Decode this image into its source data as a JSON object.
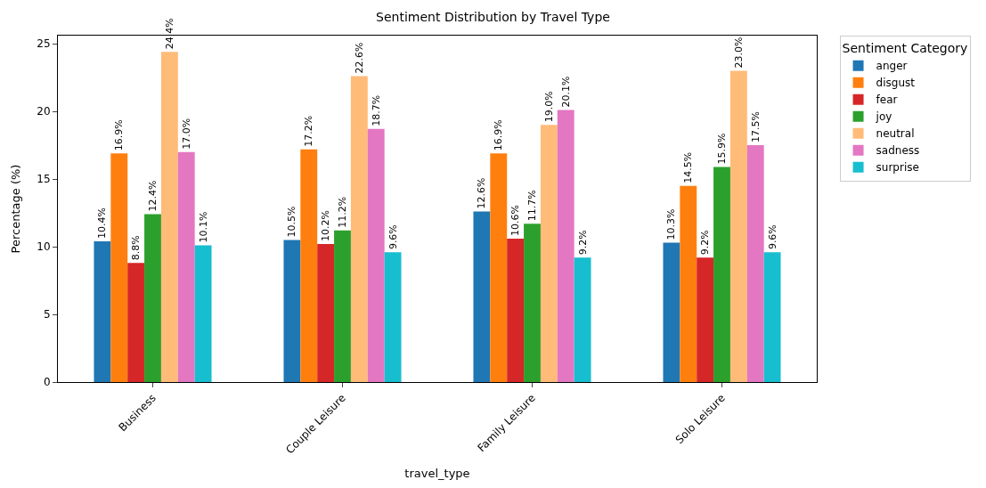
{
  "chart_data": {
    "type": "bar",
    "title": "Sentiment Distribution by Travel Type",
    "xlabel": "travel_type",
    "ylabel": "Percentage (%)",
    "legend_title": "Sentiment Category",
    "legend": "right",
    "categories": [
      "Business",
      "Couple Leisure",
      "Family Leisure",
      "Solo Leisure"
    ],
    "ylim": [
      0,
      25.6
    ],
    "yticks": [
      0,
      5,
      10,
      15,
      20,
      25
    ],
    "series": [
      {
        "name": "anger",
        "color": "#1f77b4",
        "values": [
          10.4,
          10.5,
          12.6,
          10.3
        ],
        "value_labels": [
          "10.4%",
          "10.5%",
          "12.6%",
          "10.3%"
        ]
      },
      {
        "name": "disgust",
        "color": "#ff7f0e",
        "values": [
          16.9,
          17.2,
          16.9,
          14.5
        ],
        "value_labels": [
          "16.9%",
          "17.2%",
          "16.9%",
          "14.5%"
        ]
      },
      {
        "name": "fear",
        "color": "#d62728",
        "values": [
          8.8,
          10.2,
          10.6,
          9.2
        ],
        "value_labels": [
          "8.8%",
          "10.2%",
          "10.6%",
          "9.2%"
        ]
      },
      {
        "name": "joy",
        "color": "#2ca02c",
        "values": [
          12.4,
          11.2,
          11.7,
          15.9
        ],
        "value_labels": [
          "12.4%",
          "11.2%",
          "11.7%",
          "15.9%"
        ]
      },
      {
        "name": "neutral",
        "color": "#ffbb78",
        "values": [
          24.4,
          22.6,
          19.0,
          23.0
        ],
        "value_labels": [
          "24.4%",
          "22.6%",
          "19.0%",
          "23.0%"
        ]
      },
      {
        "name": "sadness",
        "color": "#e377c2",
        "values": [
          17.0,
          18.7,
          20.1,
          17.5
        ],
        "value_labels": [
          "17.0%",
          "18.7%",
          "20.1%",
          "17.5%"
        ]
      },
      {
        "name": "surprise",
        "color": "#17becf",
        "values": [
          10.1,
          9.6,
          9.2,
          9.6
        ],
        "value_labels": [
          "10.1%",
          "9.6%",
          "9.2%",
          "9.6%"
        ]
      }
    ]
  }
}
